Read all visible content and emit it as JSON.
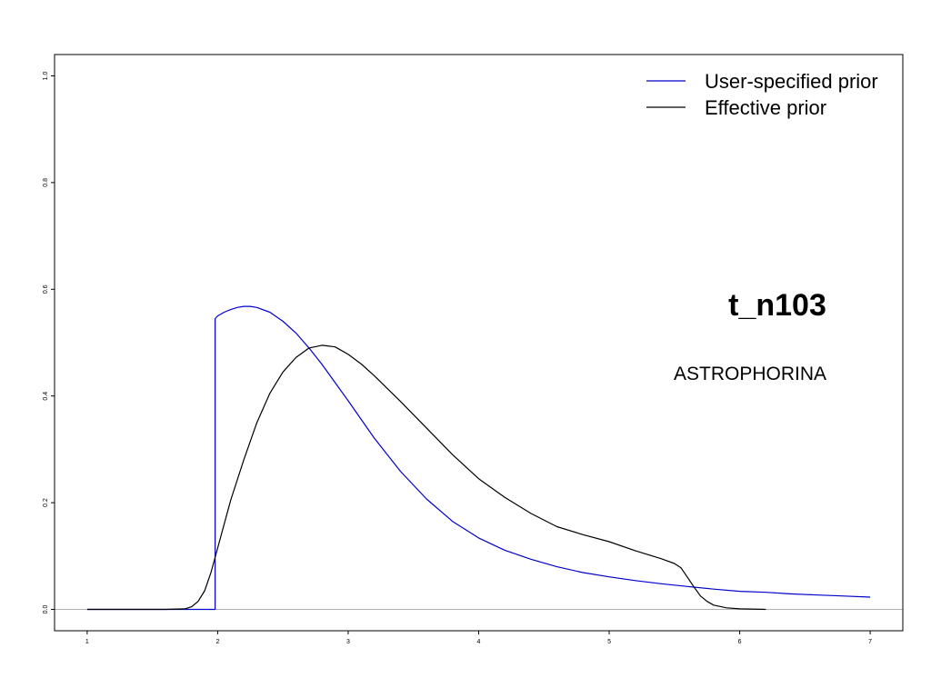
{
  "chart_data": {
    "type": "line",
    "title": "",
    "xlabel": "",
    "ylabel": "",
    "xlim": [
      0.75,
      7.25
    ],
    "ylim": [
      -0.04,
      1.04
    ],
    "xticks": [
      1,
      2,
      3,
      4,
      5,
      6,
      7
    ],
    "yticks": [
      0.0,
      0.2,
      0.4,
      0.6,
      0.8,
      1.0
    ],
    "xtick_labels": [
      "1",
      "2",
      "3",
      "4",
      "5",
      "6",
      "7"
    ],
    "ytick_labels": [
      "0.0",
      "0.2",
      "0.4",
      "0.6",
      "0.8",
      "1.0"
    ],
    "grid": false,
    "baseline": 0.0,
    "legend_position": "top-right",
    "legend": [
      {
        "name": "User-specified prior",
        "color": "#0000cc"
      },
      {
        "name": "Effective prior",
        "color": "#000000"
      }
    ],
    "annotations": {
      "node": "t_n103",
      "clade": "ASTROPHORINA"
    },
    "series": [
      {
        "name": "User-specified prior",
        "color": "#0000cc",
        "x": [
          1.0,
          1.98,
          1.98,
          2.0,
          2.05,
          2.1,
          2.15,
          2.2,
          2.25,
          2.3,
          2.4,
          2.5,
          2.6,
          2.7,
          2.8,
          2.9,
          3.0,
          3.2,
          3.4,
          3.6,
          3.8,
          4.0,
          4.2,
          4.4,
          4.6,
          4.8,
          5.0,
          5.2,
          5.4,
          5.6,
          5.8,
          6.0,
          6.2,
          6.4,
          6.6,
          6.8,
          7.0
        ],
        "y": [
          0.0,
          0.0,
          0.545,
          0.55,
          0.557,
          0.562,
          0.566,
          0.568,
          0.568,
          0.566,
          0.557,
          0.54,
          0.518,
          0.49,
          0.459,
          0.425,
          0.391,
          0.321,
          0.259,
          0.207,
          0.165,
          0.134,
          0.111,
          0.094,
          0.08,
          0.069,
          0.061,
          0.054,
          0.048,
          0.043,
          0.038,
          0.034,
          0.032,
          0.029,
          0.027,
          0.025,
          0.023
        ]
      },
      {
        "name": "Effective prior",
        "color": "#000000",
        "x": [
          1.0,
          1.6,
          1.75,
          1.8,
          1.85,
          1.9,
          1.95,
          2.0,
          2.1,
          2.2,
          2.3,
          2.4,
          2.5,
          2.6,
          2.7,
          2.8,
          2.9,
          3.0,
          3.1,
          3.2,
          3.4,
          3.6,
          3.8,
          4.0,
          4.2,
          4.4,
          4.6,
          4.8,
          5.0,
          5.2,
          5.4,
          5.5,
          5.55,
          5.6,
          5.65,
          5.7,
          5.75,
          5.8,
          5.9,
          6.0,
          6.2
        ],
        "y": [
          0.0,
          0.0,
          0.001,
          0.005,
          0.015,
          0.035,
          0.07,
          0.115,
          0.205,
          0.28,
          0.35,
          0.405,
          0.445,
          0.472,
          0.49,
          0.495,
          0.492,
          0.478,
          0.46,
          0.438,
          0.39,
          0.34,
          0.29,
          0.245,
          0.21,
          0.18,
          0.155,
          0.14,
          0.127,
          0.11,
          0.095,
          0.086,
          0.078,
          0.06,
          0.042,
          0.025,
          0.015,
          0.008,
          0.003,
          0.001,
          0.0
        ]
      }
    ]
  }
}
